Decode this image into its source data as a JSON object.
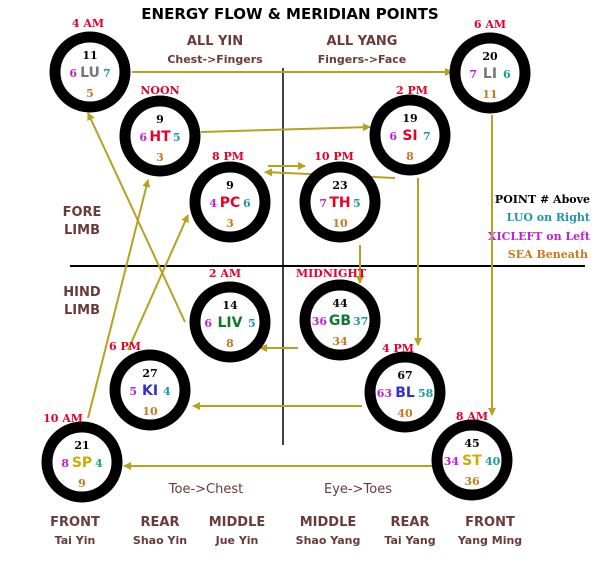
{
  "title": "ENERGY FLOW & MERIDIAN POINTS",
  "top_labels": {
    "yin": "ALL YIN",
    "yin_sub": "Chest->Fingers",
    "yang": "ALL YANG",
    "yang_sub": "Fingers->Face"
  },
  "bottom_labels": {
    "toe_chest": "Toe->Chest",
    "eye_toes": "Eye->Toes"
  },
  "limb_labels": {
    "fore_1": "FORE",
    "fore_2": "LIMB",
    "hind_1": "HIND",
    "hind_2": "LIMB"
  },
  "legend": {
    "point": "POINT # Above",
    "luo": "LUO on Right",
    "xicleft": "XICLEFT on Left",
    "sea": "SEA Beneath"
  },
  "columns": [
    {
      "name": "FRONT",
      "sub": "Tai Yin"
    },
    {
      "name": "REAR",
      "sub": "Shao Yin"
    },
    {
      "name": "MIDDLE",
      "sub": "Jue Yin"
    },
    {
      "name": "MIDDLE",
      "sub": "Shao Yang"
    },
    {
      "name": "REAR",
      "sub": "Tai Yang"
    },
    {
      "name": "FRONT",
      "sub": "Yang Ming"
    }
  ],
  "colors": {
    "ring": "#000000",
    "arrow": "#b8a020",
    "time": "#e8002a",
    "luo": "#1a9aa0",
    "xicleft": "#c020d8",
    "sea": "#c87820",
    "label": "#6a3a3a"
  },
  "meridians": [
    {
      "id": "LU",
      "time": "4 AM",
      "point": "11",
      "luo": "7",
      "xicleft": "6",
      "sea": "5",
      "color": "#777777"
    },
    {
      "id": "LI",
      "time": "6 AM",
      "point": "20",
      "luo": "6",
      "xicleft": "7",
      "sea": "11",
      "color": "#777777"
    },
    {
      "id": "HT",
      "time": "NOON",
      "point": "9",
      "luo": "5",
      "xicleft": "6",
      "sea": "3",
      "color": "#e8002a"
    },
    {
      "id": "SI",
      "time": "2 PM",
      "point": "19",
      "luo": "7",
      "xicleft": "6",
      "sea": "8",
      "color": "#e8002a"
    },
    {
      "id": "PC",
      "time": "8 PM",
      "point": "9",
      "luo": "6",
      "xicleft": "4",
      "sea": "3",
      "color": "#e8002a"
    },
    {
      "id": "TH",
      "time": "10 PM",
      "point": "23",
      "luo": "5",
      "xicleft": "7",
      "sea": "10",
      "color": "#e8002a"
    },
    {
      "id": "LIV",
      "time": "2 AM",
      "point": "14",
      "luo": "5",
      "xicleft": "6",
      "sea": "8",
      "color": "#0a7a2a"
    },
    {
      "id": "GB",
      "time": "MIDNIGHT",
      "point": "44",
      "luo": "37",
      "xicleft": "36",
      "sea": "34",
      "color": "#0a7a2a"
    },
    {
      "id": "KI",
      "time": "6 PM",
      "point": "27",
      "luo": "4",
      "xicleft": "5",
      "sea": "10",
      "color": "#3030c8"
    },
    {
      "id": "BL",
      "time": "4 PM",
      "point": "67",
      "luo": "58",
      "xicleft": "63",
      "sea": "40",
      "color": "#3030c8"
    },
    {
      "id": "SP",
      "time": "10 AM",
      "point": "21",
      "luo": "4",
      "xicleft": "8",
      "sea": "9",
      "color": "#c8b000"
    },
    {
      "id": "ST",
      "time": "8 AM",
      "point": "45",
      "luo": "40",
      "xicleft": "34",
      "sea": "36",
      "color": "#c8b000"
    }
  ]
}
